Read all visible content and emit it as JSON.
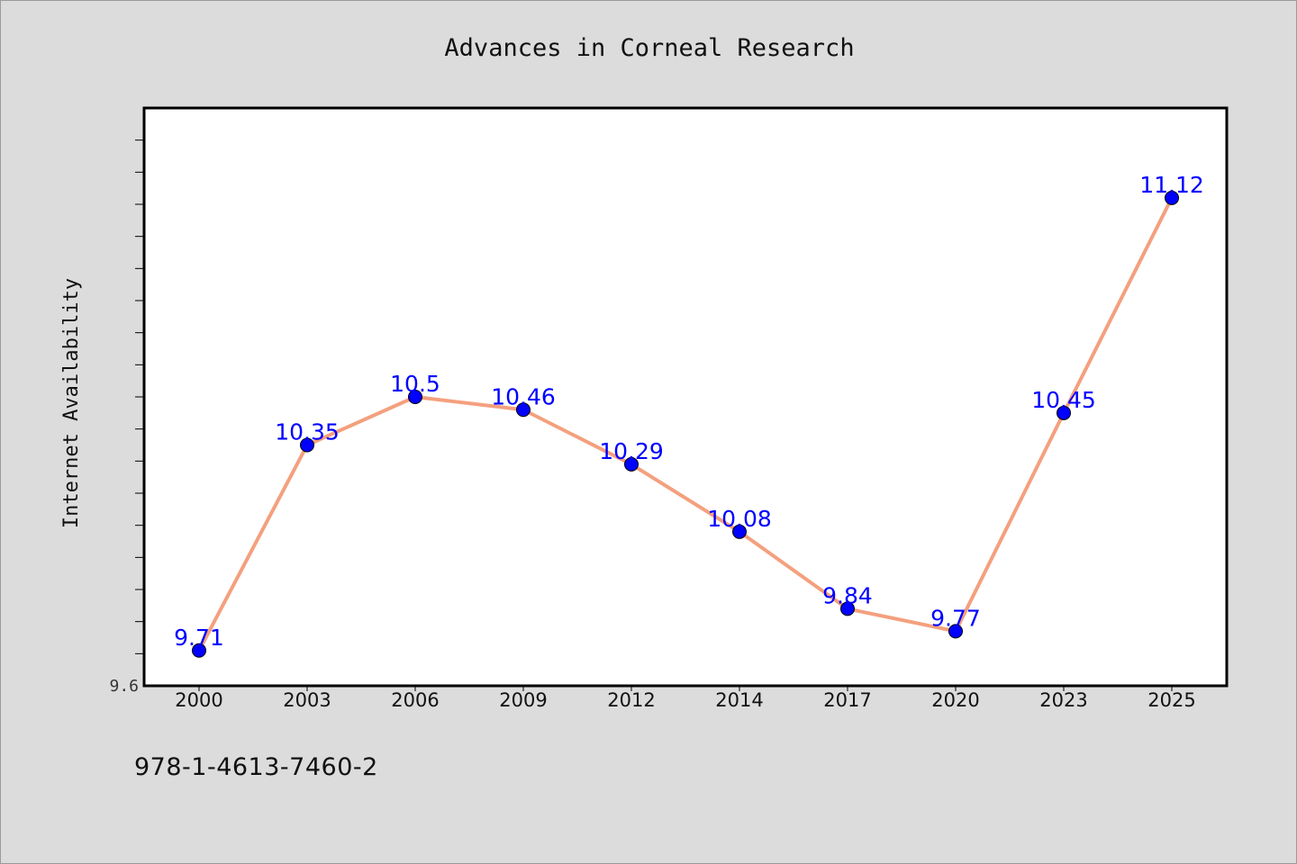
{
  "colors": {
    "background": "#dcdcdc",
    "plot_background": "#ffffff",
    "line": "#f4a07e",
    "marker": "#0000ff",
    "data_label": "#0000ff",
    "axis": "#000000"
  },
  "footer": {
    "isbn": "978-1-4613-7460-2"
  },
  "chart_data": {
    "type": "line",
    "title": "Advances in Corneal Research",
    "xlabel": "",
    "ylabel": "Internet Availability",
    "categories": [
      "2000",
      "2003",
      "2006",
      "2009",
      "2012",
      "2014",
      "2017",
      "2020",
      "2023",
      "2025"
    ],
    "series": [
      {
        "values": [
          9.71,
          10.35,
          10.5,
          10.46,
          10.29,
          10.08,
          9.84,
          9.77,
          10.45,
          11.12
        ],
        "labels": [
          "9.71",
          "10.35",
          "10.5",
          "10.46",
          "10.29",
          "10.08",
          "9.84",
          "9.77",
          "10.45",
          "11.12"
        ]
      }
    ],
    "ylim": [
      9.6,
      11.4
    ],
    "y_tick_labels": [
      "9.6"
    ],
    "grid": false,
    "legend": "none"
  }
}
